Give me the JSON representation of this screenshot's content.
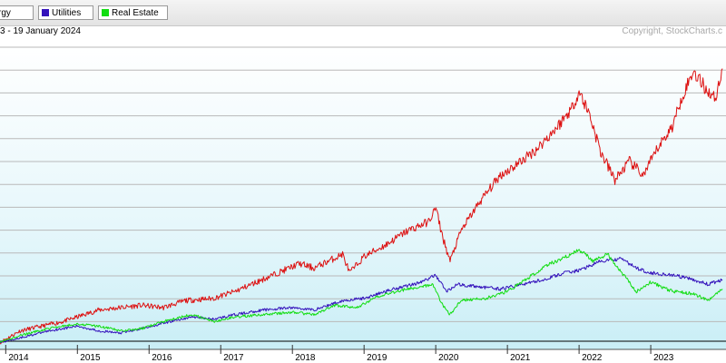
{
  "legend": {
    "items": [
      {
        "label": "rgy",
        "color": "#dd1111"
      },
      {
        "label": "Utilities",
        "color": "#3311bb"
      },
      {
        "label": "Real Estate",
        "color": "#11dd11"
      }
    ]
  },
  "header": {
    "date_range": "3 - 19 January 2024",
    "copyright": "Copyright, StockCharts.c"
  },
  "chart_data": {
    "type": "line",
    "title": "",
    "xlabel": "",
    "ylabel": "",
    "grid": true,
    "x_tick_labels": [
      "2014",
      "2015",
      "2016",
      "2017",
      "2018",
      "2019",
      "2020",
      "2021",
      "2022",
      "2023"
    ],
    "x_range": [
      2013.92,
      2024.05
    ],
    "ylim": [
      -3,
      128
    ],
    "baseline": 0,
    "series": [
      {
        "name": "rgy",
        "color": "#dd1111",
        "points": [
          [
            2013.92,
            0
          ],
          [
            2014.2,
            5
          ],
          [
            2014.5,
            7
          ],
          [
            2014.8,
            9
          ],
          [
            2015.0,
            11
          ],
          [
            2015.3,
            14
          ],
          [
            2015.6,
            15
          ],
          [
            2015.9,
            16
          ],
          [
            2016.2,
            15
          ],
          [
            2016.5,
            18
          ],
          [
            2016.9,
            19
          ],
          [
            2017.2,
            22
          ],
          [
            2017.5,
            26
          ],
          [
            2017.8,
            30
          ],
          [
            2018.1,
            34
          ],
          [
            2018.3,
            32
          ],
          [
            2018.5,
            35
          ],
          [
            2018.7,
            38
          ],
          [
            2018.8,
            30
          ],
          [
            2019.0,
            37
          ],
          [
            2019.3,
            42
          ],
          [
            2019.6,
            48
          ],
          [
            2019.9,
            52
          ],
          [
            2020.0,
            58
          ],
          [
            2020.1,
            45
          ],
          [
            2020.2,
            35
          ],
          [
            2020.35,
            48
          ],
          [
            2020.6,
            60
          ],
          [
            2020.9,
            72
          ],
          [
            2021.1,
            76
          ],
          [
            2021.4,
            83
          ],
          [
            2021.7,
            93
          ],
          [
            2021.9,
            101
          ],
          [
            2022.0,
            108
          ],
          [
            2022.15,
            98
          ],
          [
            2022.3,
            82
          ],
          [
            2022.5,
            70
          ],
          [
            2022.7,
            78
          ],
          [
            2022.9,
            72
          ],
          [
            2023.1,
            84
          ],
          [
            2023.3,
            93
          ],
          [
            2023.45,
            107
          ],
          [
            2023.6,
            117
          ],
          [
            2023.75,
            110
          ],
          [
            2023.9,
            105
          ],
          [
            2024.0,
            118
          ]
        ]
      },
      {
        "name": "Utilities",
        "color": "#3311bb",
        "points": [
          [
            2013.92,
            0
          ],
          [
            2014.2,
            2
          ],
          [
            2014.6,
            5
          ],
          [
            2015.0,
            7
          ],
          [
            2015.3,
            5
          ],
          [
            2015.6,
            4
          ],
          [
            2015.9,
            6
          ],
          [
            2016.3,
            9
          ],
          [
            2016.6,
            11
          ],
          [
            2016.9,
            10
          ],
          [
            2017.2,
            12
          ],
          [
            2017.6,
            14
          ],
          [
            2018.0,
            15
          ],
          [
            2018.3,
            14
          ],
          [
            2018.7,
            18
          ],
          [
            2019.0,
            19
          ],
          [
            2019.4,
            23
          ],
          [
            2019.8,
            26
          ],
          [
            2020.0,
            29
          ],
          [
            2020.15,
            22
          ],
          [
            2020.3,
            25
          ],
          [
            2020.6,
            24
          ],
          [
            2020.9,
            23
          ],
          [
            2021.2,
            25
          ],
          [
            2021.5,
            27
          ],
          [
            2021.8,
            30
          ],
          [
            2022.0,
            31
          ],
          [
            2022.3,
            35
          ],
          [
            2022.6,
            36
          ],
          [
            2022.8,
            32
          ],
          [
            2023.0,
            30
          ],
          [
            2023.3,
            29
          ],
          [
            2023.6,
            27
          ],
          [
            2023.8,
            25
          ],
          [
            2024.0,
            27
          ]
        ]
      },
      {
        "name": "Real Estate",
        "color": "#11dd11",
        "points": [
          [
            2013.92,
            0
          ],
          [
            2014.2,
            3
          ],
          [
            2014.6,
            6
          ],
          [
            2015.0,
            8
          ],
          [
            2015.3,
            7
          ],
          [
            2015.6,
            5
          ],
          [
            2015.9,
            6
          ],
          [
            2016.3,
            10
          ],
          [
            2016.6,
            12
          ],
          [
            2016.9,
            9
          ],
          [
            2017.2,
            11
          ],
          [
            2017.6,
            12
          ],
          [
            2018.0,
            13
          ],
          [
            2018.3,
            12
          ],
          [
            2018.6,
            16
          ],
          [
            2018.9,
            15
          ],
          [
            2019.2,
            20
          ],
          [
            2019.6,
            23
          ],
          [
            2019.95,
            25
          ],
          [
            2020.1,
            16
          ],
          [
            2020.2,
            12
          ],
          [
            2020.35,
            18
          ],
          [
            2020.7,
            19
          ],
          [
            2021.0,
            22
          ],
          [
            2021.3,
            28
          ],
          [
            2021.6,
            34
          ],
          [
            2021.9,
            38
          ],
          [
            2022.0,
            40
          ],
          [
            2022.2,
            35
          ],
          [
            2022.4,
            38
          ],
          [
            2022.6,
            30
          ],
          [
            2022.8,
            22
          ],
          [
            2023.0,
            26
          ],
          [
            2023.3,
            22
          ],
          [
            2023.6,
            21
          ],
          [
            2023.8,
            18
          ],
          [
            2024.0,
            23
          ]
        ]
      }
    ]
  }
}
